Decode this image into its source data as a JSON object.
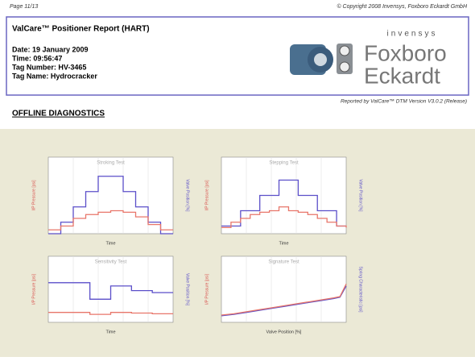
{
  "header": {
    "page": "Page 11/13",
    "copyright": "© Copyright 2008 Invensys, Foxboro Eckardt GmbH"
  },
  "report": {
    "title": "ValCare™ Positioner Report (HART)",
    "lines": [
      "Date:  19 January 2009",
      "Time:  09:56:47",
      "Tag Number:  HV-3465",
      "Tag Name:  Hydrocracker"
    ],
    "brand_small": "invensys",
    "brand_1": "Foxboro",
    "brand_2": "Eckardt"
  },
  "reported_by": "Reported by ValCare™ DTM Version V3.0.2 (Release)",
  "section_title": "OFFLINE DIAGNOSTICS",
  "chart_data": [
    {
      "type": "line",
      "title": "Stroking Test",
      "x_label": "Time",
      "y_label": "I/P Pressure [psi]",
      "y2_label": "Valve Position [%]",
      "ylim": [
        0,
        100
      ],
      "series": [
        {
          "name": "Valve Position",
          "color": "#5b4fc9",
          "values": [
            0,
            15,
            35,
            55,
            75,
            75,
            55,
            35,
            15,
            0,
            0
          ]
        },
        {
          "name": "I/P Pressure",
          "color": "#e8766a",
          "values": [
            5,
            10,
            20,
            25,
            28,
            30,
            28,
            22,
            12,
            5,
            5
          ]
        }
      ]
    },
    {
      "type": "line",
      "title": "Stepping Test",
      "x_label": "Time",
      "y_label": "I/P Pressure [psi]",
      "y2_label": "Valve Position [%]",
      "ylim": [
        0,
        100
      ],
      "series": [
        {
          "name": "Valve Position",
          "color": "#5b4fc9",
          "values": [
            10,
            10,
            30,
            30,
            50,
            50,
            70,
            70,
            50,
            50,
            30,
            30,
            10,
            10
          ]
        },
        {
          "name": "I/P Pressure",
          "color": "#e8766a",
          "values": [
            8,
            15,
            20,
            25,
            28,
            30,
            35,
            30,
            28,
            25,
            20,
            15,
            10,
            8
          ]
        }
      ]
    },
    {
      "type": "line",
      "title": "Sensitivity Test",
      "x_label": "Time",
      "y_label": "I/P Pressure [psi]",
      "y2_label": "Valve Position [%]",
      "ylim": [
        0,
        100
      ],
      "series": [
        {
          "name": "Valve Position",
          "color": "#5b4fc9",
          "values": [
            60,
            60,
            60,
            60,
            35,
            35,
            55,
            55,
            48,
            48,
            45,
            45,
            45
          ]
        },
        {
          "name": "I/P Pressure",
          "color": "#e8766a",
          "values": [
            15,
            15,
            15,
            15,
            12,
            12,
            15,
            15,
            14,
            14,
            13,
            13,
            13
          ]
        }
      ]
    },
    {
      "type": "line",
      "title": "Signature Test",
      "x_label": "Valve Position [%]",
      "y_label": "I/P Pressure [psi]",
      "y2_label": "Spring Characteristic [psi]",
      "ylim": [
        0,
        100
      ],
      "xlim": [
        0,
        100
      ],
      "x": [
        0,
        10,
        20,
        30,
        40,
        50,
        60,
        70,
        80,
        90,
        95,
        100
      ],
      "series": [
        {
          "name": "Spring Characteristic",
          "color": "#5b4fc9",
          "values": [
            10,
            12,
            15,
            18,
            21,
            24,
            27,
            30,
            33,
            36,
            38,
            55
          ]
        },
        {
          "name": "I/P Pressure",
          "color": "#e8766a",
          "values": [
            11,
            13,
            16,
            19,
            22,
            25,
            28,
            31,
            34,
            37,
            39,
            58
          ]
        }
      ]
    }
  ]
}
